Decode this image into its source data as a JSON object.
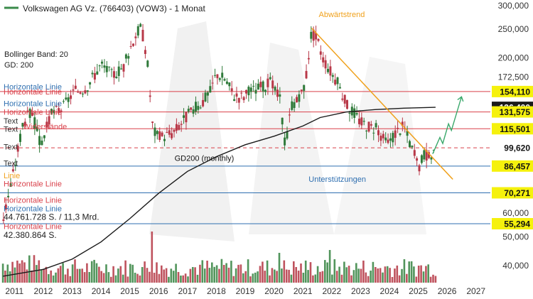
{
  "chart_data": {
    "type": "candlestick",
    "title": "Volkswagen AG Vz. (766403) (VOW3) - 1 Monat",
    "y_scale": "log",
    "ylim": [
      35000,
      300000
    ],
    "xlim": [
      2010.5,
      2027.5
    ],
    "y_ticks": [
      {
        "value": 300000,
        "label": "300,000"
      },
      {
        "value": 250000,
        "label": "250,000"
      },
      {
        "value": 200000,
        "label": "200,000"
      },
      {
        "value": 172500,
        "label": "172,500"
      },
      {
        "value": 60000,
        "label": "60,000"
      },
      {
        "value": 50000,
        "label": "50,000"
      },
      {
        "value": 40000,
        "label": "40,000"
      }
    ],
    "year_ticks": [
      "2011",
      "2012",
      "2013",
      "2014",
      "2015",
      "2016",
      "2017",
      "2018",
      "2019",
      "2020",
      "2021",
      "2022",
      "2023",
      "2024",
      "2025",
      "2026",
      "2027"
    ],
    "indicators": [
      "Bollinger Band: 20",
      "GD: 200"
    ],
    "price_tags": [
      {
        "value": 154110,
        "label": "154,110",
        "bg": "#f5f10d"
      },
      {
        "value": 136400,
        "label": "136,400",
        "bg": "#1a1a1a"
      },
      {
        "value": 131575,
        "label": "131,575",
        "bg": "#f5f10d"
      },
      {
        "value": 115501,
        "label": "115,501",
        "bg": "#f5f10d"
      },
      {
        "value": 99620,
        "label": "99,620",
        "bg": "#ffffff"
      },
      {
        "value": 86457,
        "label": "86,457",
        "bg": "#f5f10d"
      },
      {
        "value": 70271,
        "label": "70,271",
        "bg": "#f5f10d"
      },
      {
        "value": 55294,
        "label": "55,294",
        "bg": "#f5f10d"
      }
    ],
    "horizontal_lines": [
      {
        "value": 154110,
        "color": "#d9404a",
        "style": "solid"
      },
      {
        "value": 131575,
        "color": "#d9404a",
        "style": "solid"
      },
      {
        "value": 115501,
        "color": "#d9404a",
        "style": "solid"
      },
      {
        "value": 99620,
        "color": "#d9404a",
        "style": "dashed"
      },
      {
        "value": 86457,
        "color": "#2f6fb0",
        "style": "solid"
      },
      {
        "value": 70271,
        "color": "#2f6fb0",
        "style": "solid"
      },
      {
        "value": 55294,
        "color": "#2f6fb0",
        "style": "solid"
      }
    ],
    "left_labels": [
      {
        "text": "Horizontale Linie",
        "color": "#2f6fb0",
        "value": 160000
      },
      {
        "text": "Horizontale Linie",
        "color": "#d9404a",
        "value": 154110
      },
      {
        "text": "Horizontale Linie",
        "color": "#2f6fb0",
        "value": 140500
      },
      {
        "text": "Horizontale Linie",
        "color": "#d9404a",
        "value": 131575
      },
      {
        "text": "Text",
        "color": "#333333",
        "value": 123000
      },
      {
        "text": "Text",
        "color": "#333333",
        "value": 115501
      },
      {
        "text": "Text",
        "color": "#333333",
        "value": 100500
      },
      {
        "text": "Text",
        "color": "#333333",
        "value": 88500
      },
      {
        "text": "Linie",
        "color": "#f0a11c",
        "value": 80500
      },
      {
        "text": "Horizontale Linie",
        "color": "#d9404a",
        "value": 75500
      },
      {
        "text": "Horizontale Linie",
        "color": "#d9404a",
        "value": 66500
      },
      {
        "text": "Horizontale Linie",
        "color": "#2f6fb0",
        "value": 62200
      },
      {
        "text": "Horizontale Linie",
        "color": "#d9404a",
        "value": 54200
      }
    ],
    "annotations": [
      {
        "text": "Abwärtstrend",
        "color": "#f0a11c",
        "x": 2021.55,
        "y": 275000
      },
      {
        "text": "Widerstände",
        "color": "#d9404a",
        "x": 2011.3,
        "y": 115000
      },
      {
        "text": "Unterstützungen",
        "color": "#2f6fb0",
        "x": 2021.2,
        "y": 76500
      },
      {
        "text": "GD200 (monthly)",
        "color": "#111111",
        "x": 2016.55,
        "y": 90000
      }
    ],
    "volume_labels": [
      {
        "text": "44.761.728 S. / 11,3 Mrd.",
        "value": 57000
      },
      {
        "text": "42.380.864 S.",
        "value": 49500
      }
    ],
    "gd200": [
      [
        2010.6,
        36800
      ],
      [
        2012.0,
        38800
      ],
      [
        2013.0,
        42000
      ],
      [
        2014.0,
        48000
      ],
      [
        2015.0,
        57500
      ],
      [
        2016.0,
        70000
      ],
      [
        2017.0,
        83000
      ],
      [
        2018.0,
        93000
      ],
      [
        2019.0,
        102000
      ],
      [
        2020.0,
        109000
      ],
      [
        2021.0,
        118000
      ],
      [
        2021.6,
        126000
      ],
      [
        2022.5,
        131500
      ],
      [
        2023.5,
        134000
      ],
      [
        2024.5,
        135500
      ],
      [
        2025.6,
        136400
      ]
    ],
    "trendline": [
      [
        2021.3,
        252000
      ],
      [
        2026.2,
        78000
      ]
    ],
    "projection": [
      [
        2025.5,
        95000
      ],
      [
        2025.75,
        108000
      ],
      [
        2025.85,
        103000
      ],
      [
        2026.05,
        120000
      ],
      [
        2026.15,
        114000
      ],
      [
        2026.5,
        148000
      ]
    ],
    "price_path": [
      [
        2010.6,
        57000
      ],
      [
        2011.0,
        85000
      ],
      [
        2011.3,
        122000
      ],
      [
        2011.6,
        132000
      ],
      [
        2011.9,
        102000
      ],
      [
        2012.3,
        130000
      ],
      [
        2012.7,
        137000
      ],
      [
        2013.0,
        152000
      ],
      [
        2013.5,
        160000
      ],
      [
        2014.0,
        190000
      ],
      [
        2014.4,
        175000
      ],
      [
        2014.8,
        188000
      ],
      [
        2015.0,
        215000
      ],
      [
        2015.2,
        240000
      ],
      [
        2015.4,
        255000
      ],
      [
        2015.6,
        200000
      ],
      [
        2015.8,
        115000
      ],
      [
        2016.0,
        108000
      ],
      [
        2016.5,
        112000
      ],
      [
        2017.0,
        128000
      ],
      [
        2017.5,
        142000
      ],
      [
        2017.8,
        155000
      ],
      [
        2018.0,
        178000
      ],
      [
        2018.3,
        170000
      ],
      [
        2018.6,
        150000
      ],
      [
        2018.9,
        148000
      ],
      [
        2019.2,
        155000
      ],
      [
        2019.6,
        160000
      ],
      [
        2019.9,
        165000
      ],
      [
        2020.2,
        145000
      ],
      [
        2020.4,
        100000
      ],
      [
        2020.6,
        140000
      ],
      [
        2020.9,
        145000
      ],
      [
        2021.1,
        170000
      ],
      [
        2021.3,
        245000
      ],
      [
        2021.5,
        230000
      ],
      [
        2021.7,
        200000
      ],
      [
        2021.9,
        185000
      ],
      [
        2022.2,
        165000
      ],
      [
        2022.5,
        140000
      ],
      [
        2022.8,
        130000
      ],
      [
        2023.0,
        122000
      ],
      [
        2023.3,
        118000
      ],
      [
        2023.6,
        115000
      ],
      [
        2023.9,
        102000
      ],
      [
        2024.2,
        112000
      ],
      [
        2024.5,
        118000
      ],
      [
        2024.8,
        98000
      ],
      [
        2025.0,
        85000
      ],
      [
        2025.2,
        95000
      ],
      [
        2025.4,
        92000
      ],
      [
        2025.6,
        99620
      ]
    ],
    "volume_note": "Monthly volume bars shown at bottom",
    "watermark": true
  }
}
